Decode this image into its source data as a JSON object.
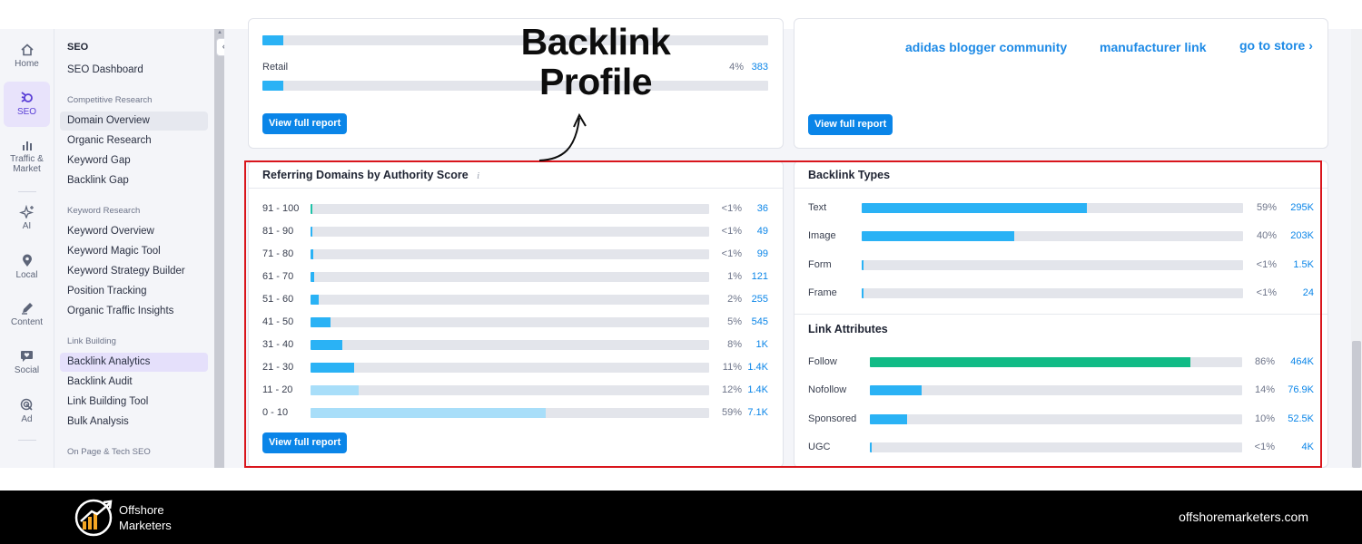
{
  "annotation": {
    "title_line1": "Backlink",
    "title_line2": "Profile"
  },
  "rail": {
    "items": [
      {
        "label": "Home",
        "icon": "home-icon"
      },
      {
        "label": "SEO",
        "icon": "seo-icon",
        "active": true
      },
      {
        "label_line1": "Traffic &",
        "label_line2": "Market",
        "icon": "bar-chart-icon"
      },
      {
        "label": "AI",
        "icon": "sparkle-icon"
      },
      {
        "label": "Local",
        "icon": "map-pin-icon"
      },
      {
        "label": "Content",
        "icon": "pen-icon"
      },
      {
        "label": "Social",
        "icon": "chat-heart-icon"
      },
      {
        "label": "Ad",
        "icon": "target-icon"
      }
    ]
  },
  "sidebar": {
    "collapse_glyph": "«",
    "title": "SEO",
    "dashboard": "SEO Dashboard",
    "categories": {
      "competitive": "Competitive Research",
      "keyword": "Keyword Research",
      "link": "Link Building",
      "onpage": "On Page & Tech SEO"
    },
    "competitive_items": [
      "Domain Overview",
      "Organic Research",
      "Keyword Gap",
      "Backlink Gap"
    ],
    "keyword_items": [
      "Keyword Overview",
      "Keyword Magic Tool",
      "Keyword Strategy Builder",
      "Position Tracking",
      "Organic Traffic Insights"
    ],
    "link_items": [
      "Backlink Analytics",
      "Backlink Audit",
      "Link Building Tool",
      "Bulk Analysis"
    ]
  },
  "top_left_card": {
    "retail_label": "Retail",
    "retail_pct": "4%",
    "retail_val": "383",
    "button": "View full report"
  },
  "top_right_card": {
    "links": [
      "adidas blogger community",
      "manufacturer link",
      "go to store ›"
    ],
    "button": "View full report"
  },
  "referring_domains": {
    "title": "Referring Domains by Authority Score",
    "info_icon": "i",
    "button": "View full report",
    "rows": [
      {
        "label": "91 - 100",
        "pct": "<1%",
        "value": "36",
        "fraction": 0.004
      },
      {
        "label": "81 - 90",
        "pct": "<1%",
        "value": "49",
        "fraction": 0.004
      },
      {
        "label": "71 - 80",
        "pct": "<1%",
        "value": "99",
        "fraction": 0.007
      },
      {
        "label": "61 - 70",
        "pct": "1%",
        "value": "121",
        "fraction": 0.01
      },
      {
        "label": "51 - 60",
        "pct": "2%",
        "value": "255",
        "fraction": 0.02
      },
      {
        "label": "41 - 50",
        "pct": "5%",
        "value": "545",
        "fraction": 0.05
      },
      {
        "label": "31 - 40",
        "pct": "8%",
        "value": "1K",
        "fraction": 0.08
      },
      {
        "label": "21 - 30",
        "pct": "11%",
        "value": "1.4K",
        "fraction": 0.11
      },
      {
        "label": "11 - 20",
        "pct": "12%",
        "value": "1.4K",
        "fraction": 0.12
      },
      {
        "label": "0 - 10",
        "pct": "59%",
        "value": "7.1K",
        "fraction": 0.59
      }
    ]
  },
  "backlink_types": {
    "title": "Backlink Types",
    "rows": [
      {
        "label": "Text",
        "pct": "59%",
        "value": "295K",
        "fraction": 0.59
      },
      {
        "label": "Image",
        "pct": "40%",
        "value": "203K",
        "fraction": 0.4
      },
      {
        "label": "Form",
        "pct": "<1%",
        "value": "1.5K",
        "fraction": 0.004
      },
      {
        "label": "Frame",
        "pct": "<1%",
        "value": "24",
        "fraction": 0.003
      }
    ]
  },
  "link_attributes": {
    "title": "Link Attributes",
    "rows": [
      {
        "label": "Follow",
        "pct": "86%",
        "value": "464K",
        "fraction": 0.86
      },
      {
        "label": "Nofollow",
        "pct": "14%",
        "value": "76.9K",
        "fraction": 0.14
      },
      {
        "label": "Sponsored",
        "pct": "10%",
        "value": "52.5K",
        "fraction": 0.1
      },
      {
        "label": "UGC",
        "pct": "<1%",
        "value": "4K",
        "fraction": 0.005
      }
    ]
  },
  "footer": {
    "brand_line1": "Offshore",
    "brand_line2": "Marketers",
    "site": "offshoremarketers.com"
  }
}
